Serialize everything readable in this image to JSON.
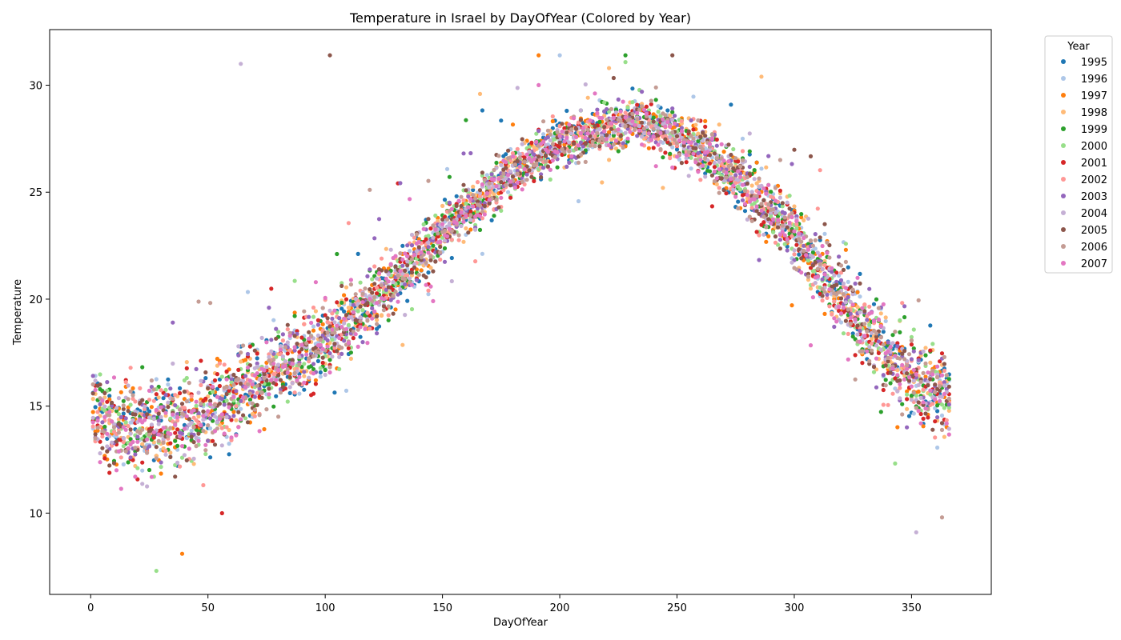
{
  "chart_data": {
    "type": "scatter",
    "title": "Temperature in Israel by DayOfYear (Colored by Year)",
    "xlabel": "DayOfYear",
    "ylabel": "Temperature",
    "xlim": [
      -17.5,
      384
    ],
    "ylim": [
      6.2,
      32.6
    ],
    "x_ticks": [
      0,
      50,
      100,
      150,
      200,
      250,
      300,
      350
    ],
    "y_ticks": [
      10,
      15,
      20,
      25,
      30
    ],
    "grid": false,
    "legend": {
      "title": "Year",
      "placement": "outside-top-right"
    },
    "point_count_per_series": 366,
    "seasonal_curve": {
      "description": "typical daily temperature by day of year",
      "points": [
        [
          0,
          14.5
        ],
        [
          20,
          13.8
        ],
        [
          40,
          14.2
        ],
        [
          60,
          15.3
        ],
        [
          80,
          16.8
        ],
        [
          100,
          18.0
        ],
        [
          120,
          19.8
        ],
        [
          140,
          22.0
        ],
        [
          160,
          24.2
        ],
        [
          180,
          26.0
        ],
        [
          200,
          27.3
        ],
        [
          220,
          28.0
        ],
        [
          235,
          28.3
        ],
        [
          250,
          27.6
        ],
        [
          265,
          26.6
        ],
        [
          280,
          25.3
        ],
        [
          300,
          23.0
        ],
        [
          320,
          20.0
        ],
        [
          340,
          17.3
        ],
        [
          355,
          15.8
        ],
        [
          366,
          15.4
        ]
      ]
    },
    "notable_points": [
      {
        "x": 28,
        "y": 7.3,
        "series": "2000"
      },
      {
        "x": 39,
        "y": 8.1,
        "series": "1997"
      },
      {
        "x": 102,
        "y": 31.4,
        "series": "2005"
      },
      {
        "x": 221,
        "y": 30.8,
        "series": "1998"
      },
      {
        "x": 286,
        "y": 30.4,
        "series": "1998"
      },
      {
        "x": 64,
        "y": 31.0,
        "series": "2004"
      },
      {
        "x": 352,
        "y": 9.1,
        "series": "2004"
      },
      {
        "x": 363,
        "y": 9.8,
        "series": "2006"
      }
    ],
    "series": [
      {
        "name": "1995",
        "color": "#1f77b4"
      },
      {
        "name": "1996",
        "color": "#aec7e8"
      },
      {
        "name": "1997",
        "color": "#ff7f0e"
      },
      {
        "name": "1998",
        "color": "#ffbb78"
      },
      {
        "name": "1999",
        "color": "#2ca02c"
      },
      {
        "name": "2000",
        "color": "#98df8a"
      },
      {
        "name": "2001",
        "color": "#d62728"
      },
      {
        "name": "2002",
        "color": "#ff9896"
      },
      {
        "name": "2003",
        "color": "#9467bd"
      },
      {
        "name": "2004",
        "color": "#c5b0d5"
      },
      {
        "name": "2005",
        "color": "#8c564b"
      },
      {
        "name": "2006",
        "color": "#c49c94"
      },
      {
        "name": "2007",
        "color": "#e377c2"
      }
    ]
  }
}
